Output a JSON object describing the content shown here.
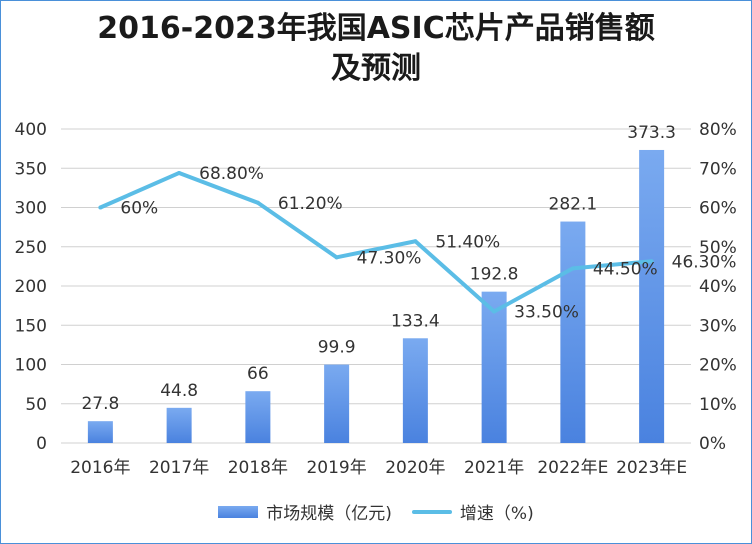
{
  "chart_data": {
    "type": "bar",
    "title": "2016-2023年我国ASIC芯片产品销售额及预测",
    "title_lines": [
      "2016-2023年我国ASIC芯片产品销售额",
      "及预测"
    ],
    "categories": [
      "2016年",
      "2017年",
      "2018年",
      "2019年",
      "2020年",
      "2021年",
      "2022年E",
      "2023年E"
    ],
    "series": [
      {
        "name": "市场规模（亿元)",
        "type": "bar",
        "axis": "left",
        "values": [
          27.8,
          44.8,
          66,
          99.9,
          133.4,
          192.8,
          282.1,
          373.3
        ],
        "labels": [
          "27.8",
          "44.8",
          "66",
          "99.9",
          "133.4",
          "192.8",
          "282.1",
          "373.3"
        ]
      },
      {
        "name": "增速（%)",
        "type": "line",
        "axis": "right",
        "values": [
          60,
          68.8,
          61.2,
          47.3,
          51.4,
          33.5,
          44.5,
          46.3
        ],
        "labels": [
          "60%",
          "68.80%",
          "61.20%",
          "47.30%",
          "51.40%",
          "33.50%",
          "44.50%",
          "46.30%"
        ]
      }
    ],
    "y_left": {
      "min": 0,
      "max": 400,
      "ticks": [
        "0",
        "50",
        "100",
        "150",
        "200",
        "250",
        "300",
        "350",
        "400"
      ]
    },
    "y_right": {
      "min": 0,
      "max": 80,
      "ticks": [
        "0%",
        "10%",
        "20%",
        "30%",
        "40%",
        "50%",
        "60%",
        "70%",
        "80%"
      ]
    },
    "grid": true,
    "legend_position": "bottom",
    "colors": {
      "bar_top": "#7aaaf0",
      "bar_bottom": "#4a82df",
      "line": "#5bbde6",
      "grid": "#d0d0d0"
    }
  }
}
